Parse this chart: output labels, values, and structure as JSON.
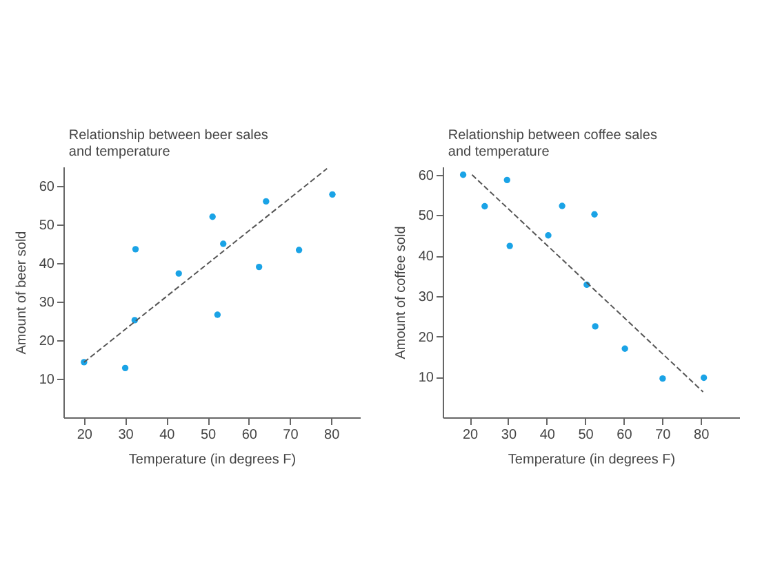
{
  "chart_data": [
    {
      "type": "scatter",
      "title": "Relationship between beer sales and temperature",
      "xlabel": "Temperature (in degrees F)",
      "ylabel": "Amount of beer sold",
      "xlim": [
        15,
        87
      ],
      "xticks": [
        20,
        30,
        40,
        50,
        60,
        70,
        80
      ],
      "ylim": [
        0,
        65
      ],
      "yticks": [
        10,
        20,
        30,
        40,
        50,
        60
      ],
      "series": [
        {
          "marker": "circle",
          "color": "#1aa3e6",
          "x": [
            20,
            30,
            32.5,
            32.3,
            43,
            51.2,
            52.4,
            53.8,
            62.5,
            64.2,
            72.2,
            80.3
          ],
          "values": [
            14.3,
            12.8,
            43.6,
            25.2,
            37.3,
            52,
            26.6,
            45,
            39,
            56,
            43.4,
            57.8
          ]
        },
        {
          "type": "line",
          "line_style": "dashed",
          "color": "#555555",
          "x": [
            20,
            79
          ],
          "values": [
            14.3,
            64.5
          ]
        }
      ]
    },
    {
      "type": "scatter",
      "title": "Relationship between coffee sales and temperature",
      "xlabel": "Temperature (in degrees F)",
      "ylabel": "Amount of coffee sold",
      "xlim": [
        13,
        90
      ],
      "xticks": [
        20,
        30,
        40,
        50,
        60,
        70,
        80
      ],
      "ylim": [
        0,
        62
      ],
      "yticks": [
        10,
        20,
        30,
        40,
        50,
        60
      ],
      "series": [
        {
          "marker": "circle",
          "color": "#1aa3e6",
          "x": [
            18.3,
            23.9,
            29.7,
            30.4,
            40.4,
            44,
            52.4,
            50.4,
            52.6,
            60.3,
            70.1,
            80.8
          ],
          "values": [
            60,
            52.2,
            58.7,
            42.4,
            45,
            52.3,
            50.2,
            32.8,
            22.5,
            17,
            9.6,
            9.8
          ]
        },
        {
          "type": "line",
          "line_style": "dashed",
          "color": "#555555",
          "x": [
            20.6,
            80.6
          ],
          "values": [
            60,
            6.3
          ]
        }
      ]
    }
  ]
}
